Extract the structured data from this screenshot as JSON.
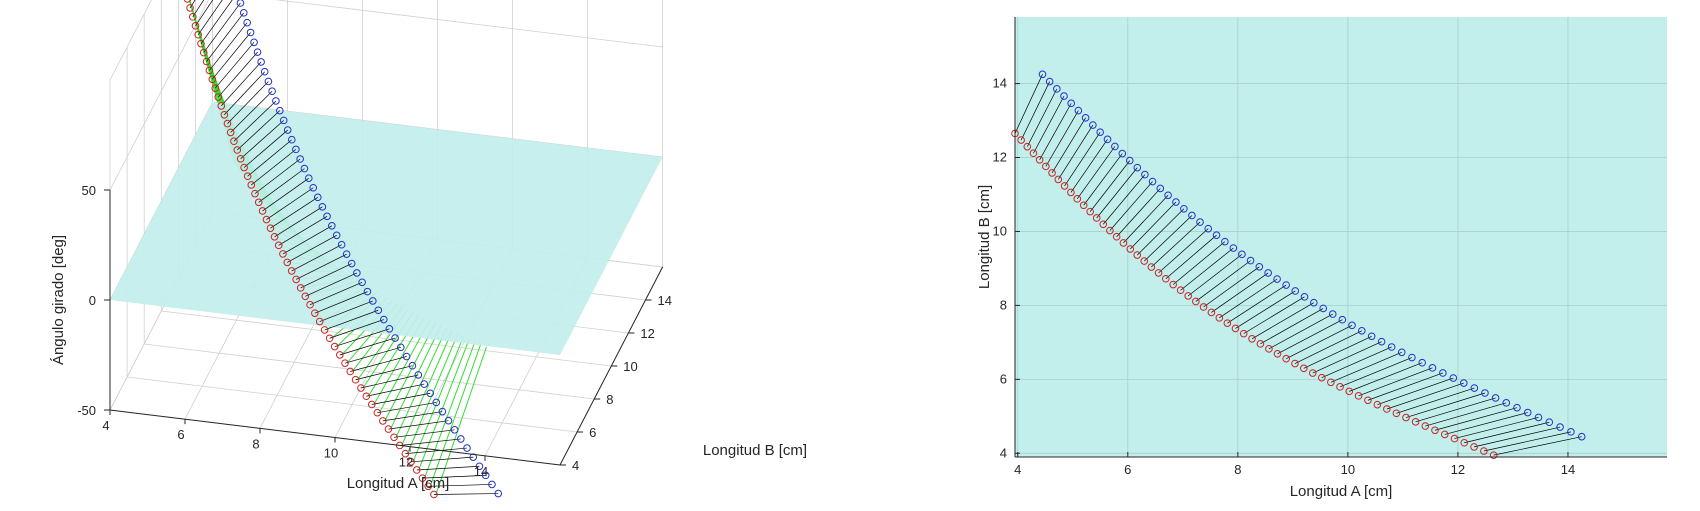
{
  "chart_data": [
    {
      "type": "line",
      "view": "3d",
      "xlabel": "Longitud A [cm]",
      "ylabel": "Longitud B [cm]",
      "zlabel": "Ángulo girado [deg]",
      "xlim": [
        4,
        16
      ],
      "ylim": [
        4,
        16
      ],
      "zlim": [
        -50,
        100
      ],
      "x_ticks": [
        "4",
        "6",
        "8",
        "10",
        "12",
        "14"
      ],
      "y_ticks": [
        "4",
        "6",
        "8",
        "10",
        "12",
        "14"
      ],
      "z_ticks": [
        "-50",
        "0",
        "50"
      ],
      "grid": true,
      "plane": {
        "z": 0,
        "color": "#c2eeec"
      },
      "series": [
        {
          "color": "#cc2222",
          "marker": "circle",
          "path": {
            "from": [
              3.95,
              12.65
            ],
            "to": [
              12.65,
              3.95
            ],
            "z_from": 80,
            "z_to": -70
          }
        },
        {
          "color": "#2233cc",
          "marker": "circle",
          "path": {
            "from": [
              4.45,
              14.25
            ],
            "to": [
              14.25,
              4.45
            ],
            "z_from": 95,
            "z_to": -70
          }
        }
      ],
      "green_stems": {
        "color": "#33dd33",
        "from_plane": true
      }
    },
    {
      "type": "line",
      "view": "2d",
      "xlabel": "Longitud A [cm]",
      "ylabel": "Longitud B [cm]",
      "xlim": [
        3.95,
        15.8
      ],
      "ylim": [
        3.9,
        15.8
      ],
      "x_ticks": [
        4,
        6,
        8,
        10,
        12,
        14
      ],
      "y_ticks": [
        4,
        6,
        8,
        10,
        12,
        14
      ],
      "grid": true,
      "background": "#c2eeec",
      "series": [
        {
          "color": "#cc2222",
          "marker": "circle",
          "path": {
            "from": [
              3.95,
              12.65
            ],
            "to": [
              12.65,
              3.95
            ]
          }
        },
        {
          "color": "#2233cc",
          "marker": "circle",
          "path": {
            "from": [
              4.45,
              14.25
            ],
            "to": [
              14.25,
              4.45
            ]
          }
        }
      ],
      "connectors": {
        "color": "#000000"
      }
    }
  ]
}
